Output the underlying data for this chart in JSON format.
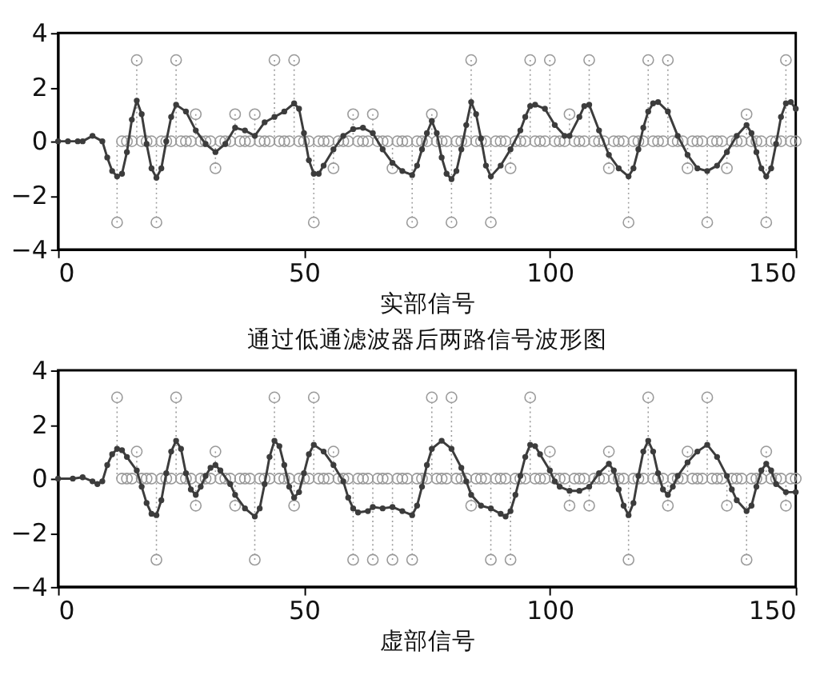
{
  "chart_data": [
    {
      "type": "line",
      "xlabel": "实部信号",
      "xlim": [
        0,
        150
      ],
      "ylim": [
        -4,
        4
      ],
      "xticks": [
        0,
        50,
        100,
        150
      ],
      "yticks": [
        -4,
        -2,
        0,
        2,
        4
      ],
      "series": [
        {
          "type": "lollipop",
          "color": "#9a9a9a",
          "marker": "circle",
          "line_style": "dotted",
          "x": [
            12,
            13,
            14,
            15,
            16,
            17,
            18,
            19,
            20,
            21,
            22,
            23,
            24,
            25,
            26,
            27,
            28,
            29,
            30,
            31,
            32,
            33,
            34,
            35,
            36,
            37,
            38,
            39,
            40,
            41,
            42,
            43,
            44,
            45,
            46,
            47,
            48,
            49,
            50,
            51,
            52,
            53,
            54,
            55,
            56,
            57,
            58,
            59,
            60,
            61,
            62,
            63,
            64,
            65,
            66,
            67,
            68,
            69,
            70,
            71,
            72,
            73,
            74,
            75,
            76,
            77,
            78,
            79,
            80,
            81,
            82,
            83,
            84,
            85,
            86,
            87,
            88,
            89,
            90,
            91,
            92,
            93,
            94,
            95,
            96,
            97,
            98,
            99,
            100,
            101,
            102,
            103,
            104,
            105,
            106,
            107,
            108,
            109,
            110,
            111,
            112,
            113,
            114,
            115,
            116,
            117,
            118,
            119,
            120,
            121,
            122,
            123,
            124,
            125,
            126,
            127,
            128,
            129,
            130,
            131,
            132,
            133,
            134,
            135,
            136,
            137,
            138,
            139,
            140,
            141,
            142,
            143,
            144,
            145,
            146,
            147,
            148,
            149,
            150
          ],
          "values": [
            -3,
            0,
            0,
            0,
            3,
            0,
            0,
            0,
            -3,
            0,
            0,
            0,
            3,
            0,
            0,
            0,
            1,
            0,
            0,
            0,
            -1,
            0,
            0,
            0,
            1,
            0,
            0,
            0,
            1,
            0,
            0,
            0,
            3,
            0,
            0,
            0,
            3,
            0,
            0,
            0,
            -3,
            0,
            0,
            0,
            -1,
            0,
            0,
            0,
            1,
            0,
            0,
            0,
            1,
            0,
            0,
            0,
            -1,
            0,
            0,
            0,
            -3,
            0,
            0,
            0,
            1,
            0,
            0,
            0,
            -3,
            0,
            0,
            0,
            3,
            0,
            0,
            0,
            -3,
            0,
            0,
            0,
            -1,
            0,
            0,
            0,
            3,
            0,
            0,
            0,
            3,
            0,
            0,
            0,
            1,
            0,
            0,
            0,
            3,
            0,
            0,
            0,
            -1,
            0,
            0,
            0,
            -3,
            0,
            0,
            0,
            3,
            0,
            0,
            0,
            3,
            0,
            0,
            0,
            -1,
            0,
            0,
            0,
            -3,
            0,
            0,
            0,
            -1,
            0,
            0,
            0,
            1,
            0,
            0,
            0,
            -3,
            0,
            0,
            0,
            3,
            0,
            0
          ]
        },
        {
          "color": "#3c3c3c",
          "marker": "circle",
          "x": [
            0,
            2,
            4,
            5,
            7,
            9,
            10,
            11,
            12,
            13,
            14,
            15,
            16,
            17,
            18,
            19,
            20,
            21,
            22,
            23,
            24,
            26,
            28,
            30,
            32,
            34,
            36,
            38,
            40,
            42,
            44,
            46,
            48,
            49,
            50,
            51,
            52,
            53,
            54,
            56,
            58,
            60,
            62,
            64,
            66,
            68,
            70,
            72,
            73,
            74,
            75,
            76,
            77,
            78,
            79,
            80,
            81,
            82,
            83,
            84,
            85,
            86,
            87,
            88,
            90,
            92,
            94,
            95,
            96,
            97,
            99,
            101,
            103,
            104,
            106,
            107,
            108,
            110,
            112,
            114,
            116,
            117,
            118,
            119,
            120,
            121,
            122,
            124,
            126,
            128,
            130,
            132,
            134,
            136,
            138,
            140,
            141,
            142,
            143,
            144,
            145,
            146,
            147,
            148,
            149,
            150
          ],
          "values": [
            0,
            0,
            0,
            0,
            0.2,
            0,
            -0.6,
            -1.1,
            -1.3,
            -1.2,
            -0.4,
            0.8,
            1.5,
            1.0,
            -0.1,
            -1.0,
            -1.35,
            -1.0,
            0,
            0.9,
            1.35,
            1.1,
            0.4,
            -0.1,
            -0.4,
            -0.1,
            0.5,
            0.4,
            0.2,
            0.7,
            0.9,
            1.1,
            1.4,
            1.2,
            0.3,
            -0.7,
            -1.2,
            -1.2,
            -0.9,
            -0.3,
            0.2,
            0.45,
            0.5,
            0.3,
            -0.3,
            -0.8,
            -1.1,
            -1.25,
            -0.9,
            -0.3,
            0.3,
            0.75,
            0.3,
            -0.6,
            -1.2,
            -1.4,
            -1.1,
            -0.3,
            0.6,
            1.45,
            1.0,
            0.1,
            -0.9,
            -1.3,
            -0.9,
            -0.3,
            0.4,
            0.9,
            1.3,
            1.35,
            1.2,
            0.6,
            0.2,
            0.2,
            0.9,
            1.3,
            1.35,
            0.4,
            -0.5,
            -1.0,
            -1.3,
            -1.0,
            -0.3,
            0.5,
            1.1,
            1.4,
            1.45,
            1.1,
            0.2,
            -0.5,
            -1.0,
            -1.1,
            -0.9,
            -0.4,
            0.2,
            0.6,
            0.3,
            -0.4,
            -1.0,
            -1.3,
            -1.0,
            -0.1,
            0.9,
            1.4,
            1.45,
            1.2
          ]
        }
      ]
    },
    {
      "type": "line",
      "title": "通过低通滤波器后两路信号波形图",
      "xlabel": "虚部信号",
      "xlim": [
        0,
        150
      ],
      "ylim": [
        -4,
        4
      ],
      "xticks": [
        0,
        50,
        100,
        150
      ],
      "yticks": [
        -4,
        -2,
        0,
        2,
        4
      ],
      "series": [
        {
          "type": "lollipop",
          "color": "#9a9a9a",
          "marker": "circle",
          "line_style": "dotted",
          "x": [
            12,
            13,
            14,
            15,
            16,
            17,
            18,
            19,
            20,
            21,
            22,
            23,
            24,
            25,
            26,
            27,
            28,
            29,
            30,
            31,
            32,
            33,
            34,
            35,
            36,
            37,
            38,
            39,
            40,
            41,
            42,
            43,
            44,
            45,
            46,
            47,
            48,
            49,
            50,
            51,
            52,
            53,
            54,
            55,
            56,
            57,
            58,
            59,
            60,
            61,
            62,
            63,
            64,
            65,
            66,
            67,
            68,
            69,
            70,
            71,
            72,
            73,
            74,
            75,
            76,
            77,
            78,
            79,
            80,
            81,
            82,
            83,
            84,
            85,
            86,
            87,
            88,
            89,
            90,
            91,
            92,
            93,
            94,
            95,
            96,
            97,
            98,
            99,
            100,
            101,
            102,
            103,
            104,
            105,
            106,
            107,
            108,
            109,
            110,
            111,
            112,
            113,
            114,
            115,
            116,
            117,
            118,
            119,
            120,
            121,
            122,
            123,
            124,
            125,
            126,
            127,
            128,
            129,
            130,
            131,
            132,
            133,
            134,
            135,
            136,
            137,
            138,
            139,
            140,
            141,
            142,
            143,
            144,
            145,
            146,
            147,
            148,
            149,
            150
          ],
          "values": [
            3,
            0,
            0,
            0,
            1,
            0,
            0,
            0,
            -3,
            0,
            0,
            0,
            3,
            0,
            0,
            0,
            -1,
            0,
            0,
            0,
            1,
            0,
            0,
            0,
            -1,
            0,
            0,
            0,
            -3,
            0,
            0,
            0,
            3,
            0,
            0,
            0,
            -1,
            0,
            0,
            0,
            3,
            0,
            0,
            0,
            1,
            0,
            0,
            0,
            -3,
            0,
            0,
            0,
            -3,
            0,
            0,
            0,
            -3,
            0,
            0,
            0,
            -3,
            0,
            0,
            0,
            3,
            0,
            0,
            0,
            3,
            0,
            0,
            0,
            -1,
            0,
            0,
            0,
            -3,
            0,
            0,
            0,
            -3,
            0,
            0,
            0,
            3,
            0,
            0,
            0,
            1,
            0,
            0,
            0,
            -1,
            0,
            0,
            0,
            -1,
            0,
            0,
            0,
            1,
            0,
            0,
            0,
            -3,
            0,
            0,
            0,
            3,
            0,
            0,
            0,
            -1,
            0,
            0,
            0,
            1,
            0,
            0,
            0,
            3,
            0,
            0,
            0,
            -1,
            0,
            0,
            0,
            -3,
            0,
            0,
            0,
            1,
            0,
            0,
            0,
            -1,
            0,
            0
          ]
        },
        {
          "color": "#3c3c3c",
          "marker": "circle",
          "x": [
            0,
            3,
            5,
            7,
            8,
            9,
            10,
            11,
            12,
            13,
            14,
            16,
            17,
            18,
            19,
            20,
            21,
            22,
            23,
            24,
            25,
            26,
            27,
            28,
            29,
            30,
            31,
            32,
            33,
            35,
            36,
            38,
            40,
            41,
            42,
            43,
            44,
            45,
            46,
            47,
            48,
            49,
            50,
            51,
            52,
            54,
            56,
            58,
            59,
            60,
            61,
            63,
            64,
            66,
            68,
            70,
            72,
            73,
            74,
            75,
            76,
            78,
            80,
            82,
            83,
            84,
            86,
            88,
            90,
            91,
            92,
            93,
            94,
            95,
            96,
            97,
            98,
            100,
            101,
            102,
            104,
            106,
            108,
            110,
            112,
            113,
            114,
            115,
            116,
            117,
            118,
            119,
            120,
            121,
            122,
            123,
            124,
            125,
            126,
            128,
            130,
            132,
            134,
            136,
            137,
            138,
            140,
            141,
            142,
            143,
            144,
            145,
            146,
            148,
            150
          ],
          "values": [
            0,
            0,
            0.05,
            -0.1,
            -0.2,
            -0.1,
            0.5,
            0.9,
            1.1,
            1.05,
            0.8,
            0.3,
            -0.3,
            -0.9,
            -1.3,
            -1.35,
            -0.8,
            0.2,
            1.0,
            1.4,
            1.1,
            0.2,
            -0.4,
            -0.6,
            -0.3,
            0.1,
            0.4,
            0.5,
            0.3,
            -0.2,
            -0.6,
            -1.1,
            -1.4,
            -1.1,
            -0.2,
            0.8,
            1.4,
            1.2,
            0.5,
            -0.3,
            -0.7,
            -0.5,
            0.2,
            0.9,
            1.25,
            1.0,
            0.5,
            -0.1,
            -0.7,
            -1.1,
            -1.25,
            -1.2,
            -1.05,
            -1.1,
            -1.05,
            -1.2,
            -1.35,
            -1.0,
            -0.3,
            0.5,
            1.1,
            1.4,
            1.1,
            0.4,
            -0.1,
            -0.6,
            -1.0,
            -1.1,
            -1.3,
            -1.4,
            -1.2,
            -0.6,
            0.1,
            0.8,
            1.25,
            1.2,
            0.9,
            0.3,
            -0.1,
            -0.3,
            -0.45,
            -0.45,
            -0.3,
            0.2,
            0.55,
            0.3,
            -0.4,
            -1.0,
            -1.35,
            -0.9,
            0.1,
            1.0,
            1.4,
            1.0,
            0.2,
            -0.4,
            -0.6,
            -0.3,
            0.1,
            0.6,
            1.0,
            1.25,
            0.8,
            0.1,
            -0.4,
            -0.8,
            -1.2,
            -1.0,
            -0.3,
            0.3,
            0.55,
            0.3,
            -0.2,
            -0.5,
            -0.5
          ]
        }
      ]
    }
  ]
}
